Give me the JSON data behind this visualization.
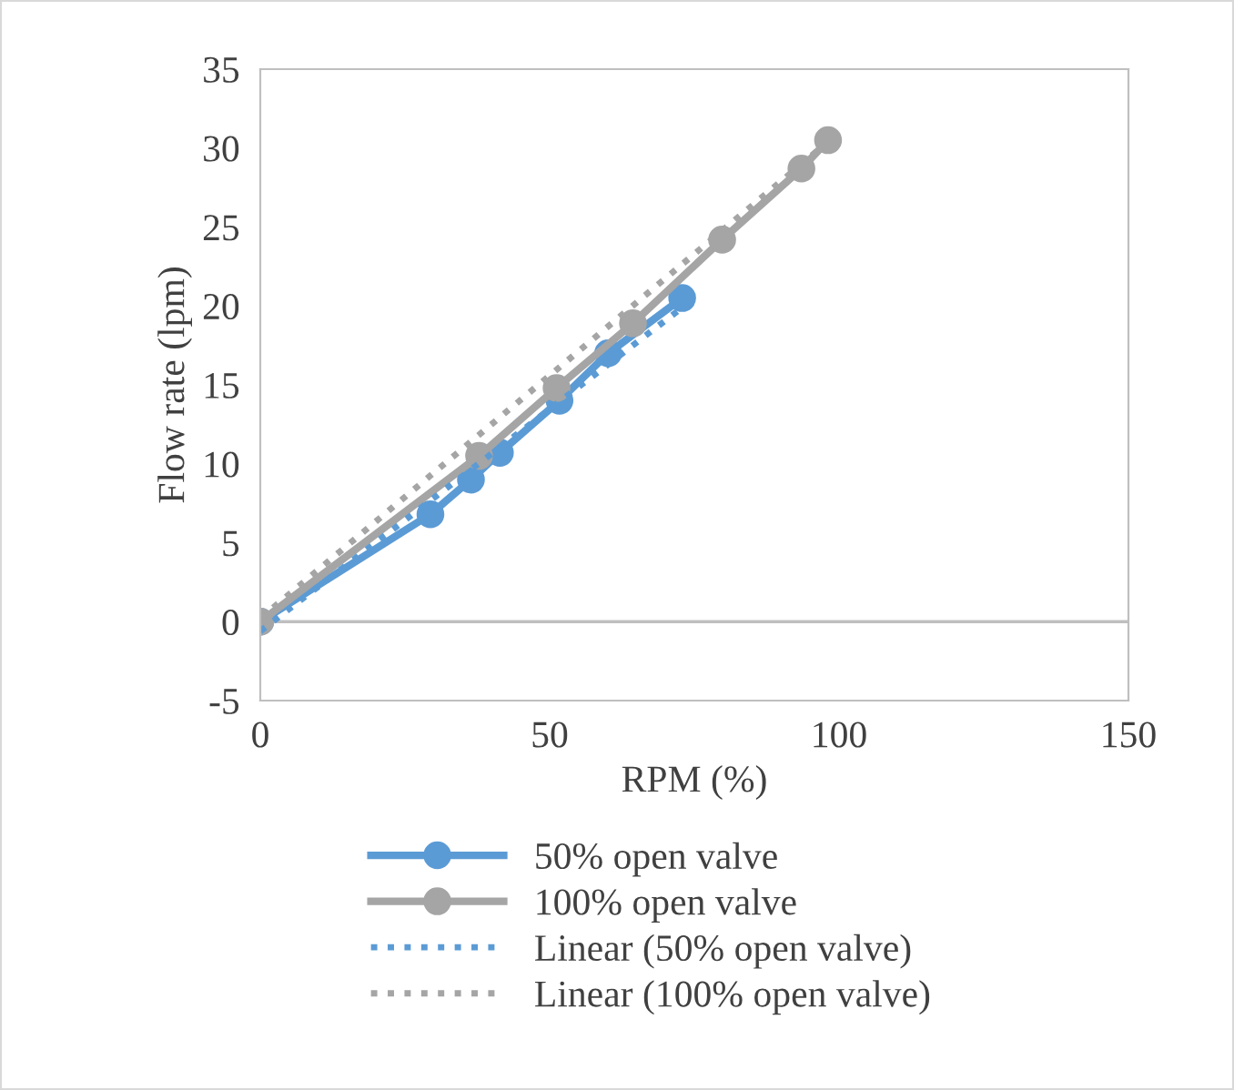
{
  "chart_data": {
    "type": "line",
    "xlabel": "RPM (%)",
    "ylabel": "Flow rate (lpm)",
    "xlim": [
      0,
      150
    ],
    "xticks": [
      0,
      50,
      100,
      150
    ],
    "ylim": [
      -5,
      35
    ],
    "yticks": [
      -5,
      0,
      5,
      10,
      15,
      20,
      25,
      30,
      35
    ],
    "grid": false,
    "ref_lines": [
      {
        "axis": "y",
        "value": 0,
        "color": "#bfbfbf",
        "line_style": "solid"
      }
    ],
    "legend": "bottom",
    "marker": "circle",
    "line_style": "solid",
    "series": [
      {
        "name": "50% open valve",
        "color": "#5b9bd5",
        "x": [
          0,
          29.4,
          36.4,
          41.4,
          51.7,
          60.1,
          72.9
        ],
        "values": [
          0,
          6.8,
          9.0,
          10.7,
          14.0,
          17.0,
          20.5
        ]
      },
      {
        "name": "100% open valve",
        "color": "#a5a5a5",
        "x": [
          0,
          37.8,
          51.2,
          64.4,
          79.8,
          93.5,
          98.1
        ],
        "values": [
          0,
          10.5,
          14.8,
          18.9,
          24.2,
          28.7,
          30.5
        ]
      },
      {
        "name": "Linear (50% open valve)",
        "color": "#5b9bd5",
        "x": [
          0,
          72.9
        ],
        "values": [
          -0.6,
          19.9
        ],
        "marker": "none",
        "line_style": "dotted"
      },
      {
        "name": "Linear (100% open valve)",
        "color": "#a5a5a5",
        "x": [
          0,
          98.1
        ],
        "values": [
          0.2,
          30.4
        ],
        "marker": "none",
        "line_style": "dotted"
      }
    ]
  }
}
